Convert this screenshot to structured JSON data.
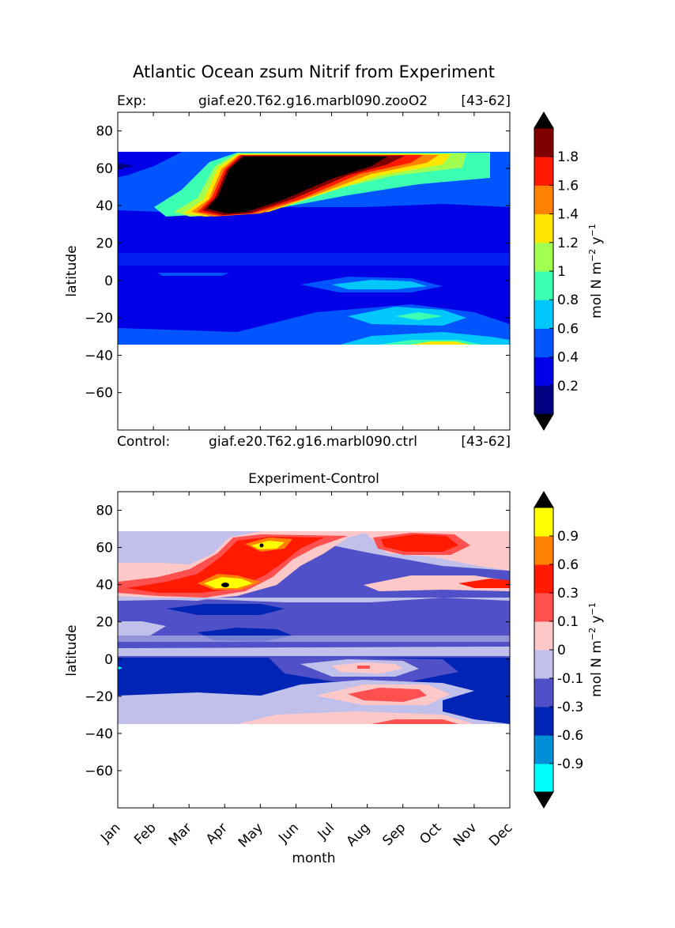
{
  "figure": {
    "title": "Atlantic Ocean zsum Nitrif from Experiment",
    "exp_prefix": "Exp:",
    "exp_case": "giaf.e20.T62.g16.marbl090.zooO2",
    "exp_years": "[43-62]",
    "ctrl_prefix": "Control:",
    "ctrl_case": "giaf.e20.T62.g16.marbl090.ctrl",
    "ctrl_years": "[43-62]",
    "diff_title": "Experiment-Control"
  },
  "chart_data": [
    {
      "type": "heatmap",
      "title": "Atlantic Ocean zsum Nitrif from Experiment",
      "xlabel": "",
      "ylabel": "latitude",
      "x_range": [
        0,
        11
      ],
      "ylim": [
        -80,
        90
      ],
      "yticks": [
        80,
        60,
        40,
        20,
        0,
        -20,
        -40,
        -60
      ],
      "data_lat_range": [
        -34,
        69
      ],
      "colorbar": {
        "label": "mol N m",
        "label_sup1": "−2",
        "label_mid": " y",
        "label_sup2": "−1",
        "levels": [
          0,
          0.2,
          0.4,
          0.6,
          0.8,
          1,
          1.2,
          1.4,
          1.6,
          1.8,
          2
        ],
        "tick_labels": [
          "0.2",
          "0.4",
          "0.6",
          "0.8",
          "1",
          "1.2",
          "1.4",
          "1.6",
          "1.8"
        ],
        "colors": [
          "#000080",
          "#0000e6",
          "#0055ff",
          "#00c8ff",
          "#3cffb4",
          "#a0ff50",
          "#ffe600",
          "#ff8200",
          "#ff1a00",
          "#800000"
        ],
        "extend_low": "#000000",
        "extend_high": "#000000"
      },
      "features": [
        {
          "desc": "subpolar spring bloom maximum",
          "month_start": 3,
          "month_end": 6,
          "lat_min": 36,
          "lat_max": 69,
          "peak": 2.0
        },
        {
          "desc": "equatorial band",
          "month_start": 6,
          "month_end": 8,
          "lat_min": -4,
          "lat_max": 0,
          "peak": 0.7
        },
        {
          "desc": "southern subtropics",
          "month_start": 6,
          "month_end": 9,
          "lat_min": -34,
          "lat_max": -16,
          "peak": 1.2
        }
      ]
    },
    {
      "type": "heatmap",
      "title": "Experiment-Control",
      "xlabel": "month",
      "ylabel": "latitude",
      "categories": [
        "Jan",
        "Feb",
        "Mar",
        "Apr",
        "May",
        "Jun",
        "Jul",
        "Aug",
        "Sep",
        "Oct",
        "Nov",
        "Dec"
      ],
      "ylim": [
        -80,
        90
      ],
      "yticks": [
        80,
        60,
        40,
        20,
        0,
        -20,
        -40,
        -60
      ],
      "data_lat_range": [
        -34,
        69
      ],
      "colorbar": {
        "label": "mol N m",
        "label_sup1": "−2",
        "label_mid": " y",
        "label_sup2": "−1",
        "levels": [
          -1.2,
          -0.9,
          -0.6,
          -0.3,
          -0.1,
          0,
          0.1,
          0.3,
          0.6,
          0.9,
          1.2
        ],
        "tick_labels": [
          "-0.9",
          "-0.6",
          "-0.3",
          "-0.1",
          "0",
          "0.1",
          "0.3",
          "0.6",
          "0.9"
        ],
        "colors": [
          "#00ffff",
          "#0090d8",
          "#0024b4",
          "#5050c8",
          "#c0c0ea",
          "#ffc8c8",
          "#ff5050",
          "#ff1a00",
          "#ff8200",
          "#ffff00"
        ],
        "extend_low": "#000000",
        "extend_high": "#000000"
      },
      "features": [
        {
          "desc": "positive difference, spring subpolar",
          "month_start": 0,
          "month_end": 5,
          "lat_min": 36,
          "lat_max": 66,
          "peak": 1.0
        },
        {
          "desc": "positive difference, autumn subpolar",
          "month_start": 7,
          "month_end": 10,
          "lat_min": 56,
          "lat_max": 66,
          "peak": 0.6
        },
        {
          "desc": "negative difference, tropics",
          "month_start": 0,
          "month_end": 11,
          "lat_min": -34,
          "lat_max": 36,
          "peak": -0.3
        }
      ]
    }
  ]
}
